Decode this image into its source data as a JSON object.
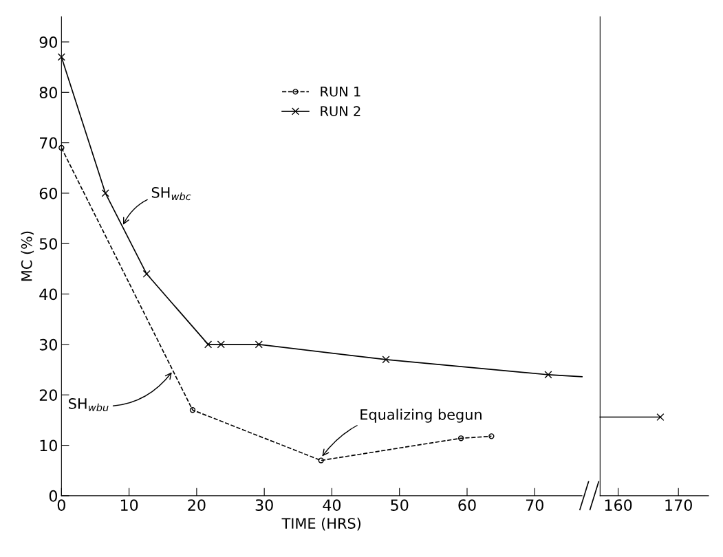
{
  "chart_data": [
    {
      "type": "line",
      "xlabel": "TIME (HRS)",
      "ylabel": "MC (%)",
      "xlim": [
        0,
        77
      ],
      "xticks": [
        0,
        10,
        20,
        30,
        40,
        50,
        60,
        70
      ],
      "ylim": [
        0,
        95
      ],
      "yticks": [
        0,
        10,
        20,
        30,
        40,
        50,
        60,
        70,
        80,
        90
      ],
      "grid": false,
      "legend": "top",
      "tick_labels": "xy",
      "series": [
        {
          "name": "RUN 1",
          "color": "#000000",
          "marker": "circle",
          "line_style": "dashed",
          "x": [
            0,
            19.4,
            38.4,
            59.1,
            63.6
          ],
          "values": [
            69,
            17,
            7,
            11.4,
            11.8
          ]
        },
        {
          "name": "RUN 2",
          "color": "#000000",
          "marker": "cross",
          "line_style": "solid",
          "x": [
            0,
            6.5,
            12.6,
            21.7,
            23.6,
            29.2,
            48,
            72
          ],
          "values": [
            87,
            60,
            44,
            30,
            30,
            30,
            27,
            24
          ]
        },
        {
          "color": "#000000",
          "marker": "none",
          "line_style": "solid",
          "x": [
            72,
            77
          ],
          "values": [
            24,
            23.6
          ]
        }
      ],
      "annotations": [
        {
          "text": "SH$_{wbc}$",
          "x": 9,
          "y": 53.4
        },
        {
          "text": "SH$_{wbu}$",
          "x": 16.5,
          "y": 24.8
        },
        {
          "text": "Equalizing begun",
          "x": 38.4,
          "y": 7.5
        }
      ]
    },
    {
      "type": "line",
      "xlim": [
        157,
        175
      ],
      "xticks": [
        160,
        170
      ],
      "ylim": [
        0,
        95
      ],
      "tick_labels": "x",
      "grid": false,
      "series": [
        {
          "color": "#000000",
          "marker": "none",
          "line_style": "solid",
          "x": [
            157,
            167
          ],
          "values": [
            15.6,
            15.6
          ]
        },
        {
          "color": "#000000",
          "marker": "cross",
          "line_style": "solid",
          "x": [
            167
          ],
          "values": [
            15.6
          ]
        }
      ]
    }
  ]
}
